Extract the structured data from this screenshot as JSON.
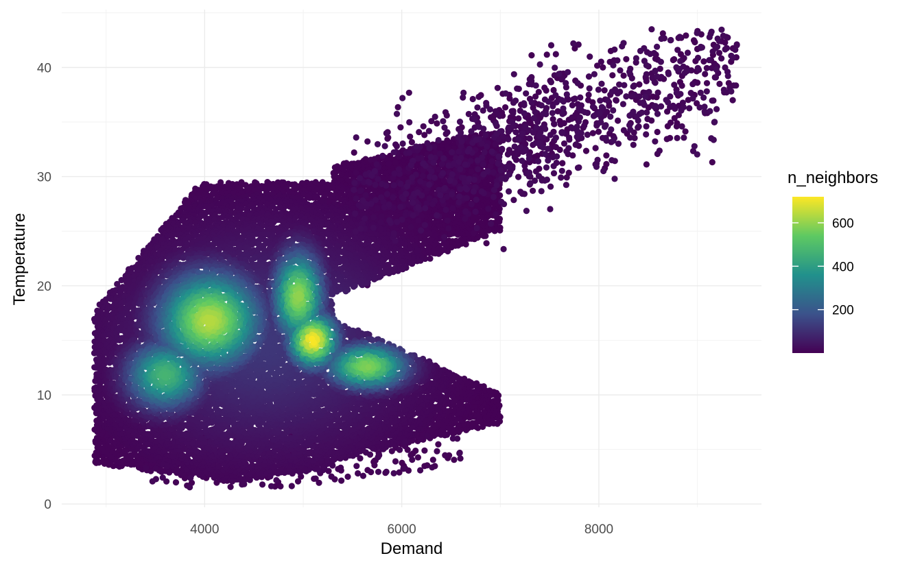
{
  "chart_data": {
    "type": "scatter",
    "xlabel": "Demand",
    "ylabel": "Temperature",
    "xlim": [
      2550,
      9650
    ],
    "ylim": [
      -0.3,
      45.3
    ],
    "x_ticks": [
      4000,
      6000,
      8000
    ],
    "x_tick_labels": [
      "4000",
      "6000",
      "8000"
    ],
    "y_ticks": [
      0,
      10,
      20,
      30,
      40
    ],
    "y_tick_labels": [
      "0",
      "10",
      "20",
      "30",
      "40"
    ],
    "grid": true,
    "theme": "minimal",
    "color_scale": {
      "title": "n_neighbors",
      "palette": "viridis",
      "range": [
        0,
        720
      ],
      "breaks": [
        200,
        400,
        600
      ],
      "break_labels": [
        "200",
        "400",
        "600"
      ],
      "colors": [
        "#440154",
        "#3b528b",
        "#21918c",
        "#5ec962",
        "#fde725"
      ]
    },
    "legend_position": "right",
    "density_clusters": [
      {
        "x": 4050,
        "y": 16.8,
        "sx": 330,
        "sy": 2.8,
        "peak": 640
      },
      {
        "x": 3600,
        "y": 11.8,
        "sx": 250,
        "sy": 2.0,
        "peak": 470
      },
      {
        "x": 4950,
        "y": 19.0,
        "sx": 160,
        "sy": 2.6,
        "peak": 600
      },
      {
        "x": 5100,
        "y": 15.0,
        "sx": 160,
        "sy": 1.6,
        "peak": 720
      },
      {
        "x": 5650,
        "y": 12.6,
        "sx": 260,
        "sy": 1.3,
        "peak": 580
      }
    ],
    "sparse_region": {
      "x_range": [
        5500,
        9400
      ],
      "y_range": [
        20,
        43.5
      ],
      "n_neighbors": 0
    }
  }
}
